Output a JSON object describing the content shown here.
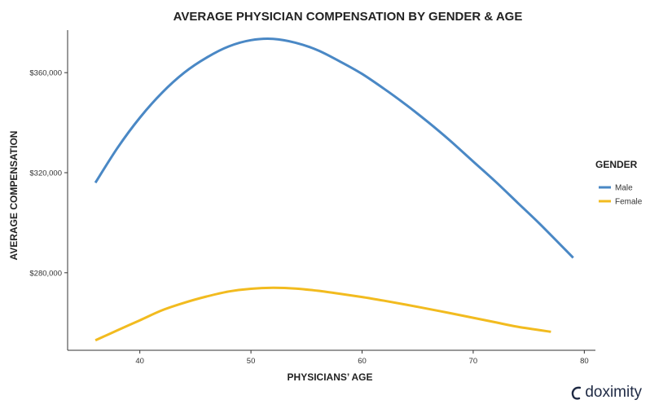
{
  "chart_data": {
    "type": "line",
    "title": "AVERAGE PHYSICIAN COMPENSATION BY GENDER & AGE",
    "xlabel": "PHYSICIANS’ AGE",
    "ylabel": "AVERAGE COMPENSATION",
    "xlim": [
      33.5,
      81
    ],
    "ylim": [
      249000,
      377000
    ],
    "x_ticks": [
      40,
      50,
      60,
      70,
      80
    ],
    "y_ticks": [
      280000,
      320000,
      360000
    ],
    "y_tick_labels": [
      "$280,000",
      "$320,000",
      "$360,000"
    ],
    "grid": false,
    "legend": {
      "title": "GENDER",
      "position": "right"
    },
    "series": [
      {
        "name": "Male",
        "color": "#4a88c5",
        "x": [
          36,
          38,
          40,
          42,
          44,
          46,
          48,
          50,
          52,
          54,
          56,
          58,
          60,
          62,
          64,
          66,
          68,
          70,
          72,
          74,
          76,
          79
        ],
        "values": [
          316000,
          330000,
          342000,
          352000,
          360000,
          366000,
          370500,
          373000,
          373500,
          372000,
          369000,
          364500,
          359500,
          353500,
          347000,
          340000,
          332500,
          324500,
          316500,
          308000,
          299500,
          286000
        ]
      },
      {
        "name": "Female",
        "color": "#f2bb1f",
        "x": [
          36,
          38,
          40,
          42,
          44,
          46,
          48,
          50,
          52,
          54,
          56,
          58,
          60,
          62,
          64,
          66,
          68,
          70,
          72,
          74,
          77
        ],
        "values": [
          253000,
          257000,
          261000,
          265000,
          268000,
          270500,
          272500,
          273600,
          274000,
          273700,
          272800,
          271600,
          270300,
          268800,
          267200,
          265500,
          263800,
          262000,
          260200,
          258400,
          256400
        ]
      }
    ]
  },
  "brand": {
    "name": "doximity",
    "icon": "doximity-swoosh-icon"
  }
}
